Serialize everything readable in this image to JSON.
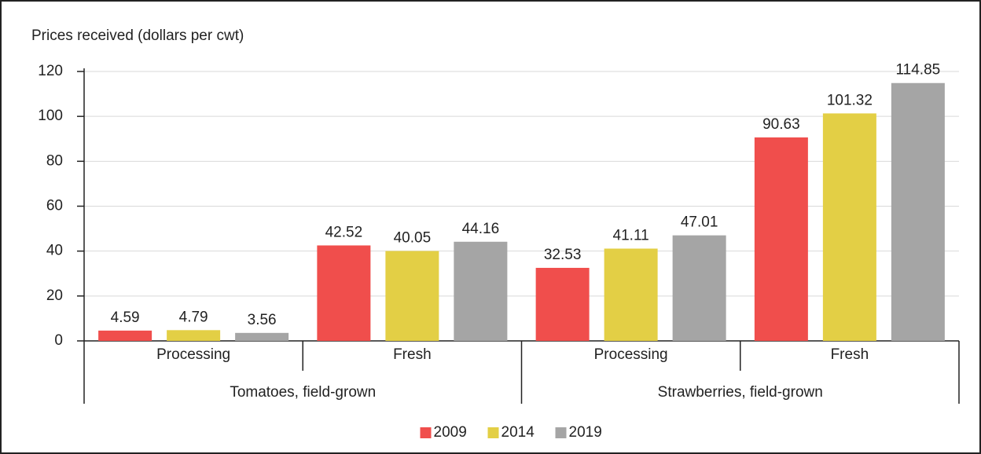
{
  "chart_data": {
    "type": "bar",
    "y_label": "Prices received (dollars per cwt)",
    "categories": [
      "Processing",
      "Fresh",
      "Processing",
      "Fresh"
    ],
    "groups": [
      {
        "label": "Tomatoes, field-grown",
        "count": 2
      },
      {
        "label": "Strawberries, field-grown",
        "count": 2
      }
    ],
    "series": [
      {
        "name": "2009",
        "color": "#f04e4c",
        "values": [
          4.59,
          42.52,
          32.53,
          90.63
        ]
      },
      {
        "name": "2014",
        "color": "#e3cf45",
        "values": [
          4.79,
          40.05,
          41.11,
          101.32
        ]
      },
      {
        "name": "2019",
        "color": "#a5a5a5",
        "values": [
          3.56,
          44.16,
          47.01,
          114.85
        ]
      }
    ],
    "ylim": [
      0,
      120
    ],
    "yticks": [
      0,
      20,
      40,
      60,
      80,
      100,
      120
    ],
    "grid": true,
    "legend": "bottom"
  }
}
